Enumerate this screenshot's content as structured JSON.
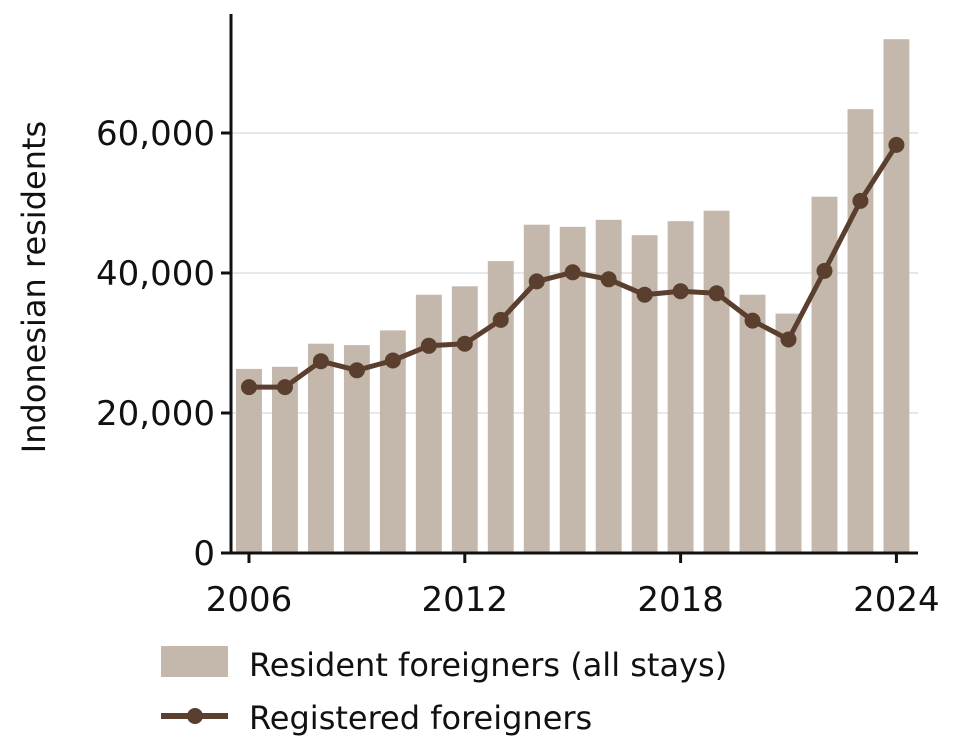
{
  "chart_data": {
    "type": "bar",
    "x": [
      2006,
      2007,
      2008,
      2009,
      2010,
      2011,
      2012,
      2013,
      2014,
      2015,
      2016,
      2017,
      2018,
      2019,
      2020,
      2021,
      2022,
      2023,
      2024
    ],
    "xticks": [
      "2006",
      "2012",
      "2018",
      "2024"
    ],
    "xlim": [
      2005.5,
      2024.6
    ],
    "ylabel": "Indonesian residents",
    "ylim": [
      0,
      77000
    ],
    "yticks": [
      "0",
      "20,000",
      "40,000",
      "60,000"
    ],
    "grid": "horizontal",
    "legend_position": "bottom",
    "series": [
      {
        "name": "Resident foreigners (all stays)",
        "type": "bar",
        "color": "#c4b8ad",
        "values": [
          26300,
          26600,
          29900,
          29700,
          31800,
          36900,
          38100,
          41700,
          46900,
          46600,
          47600,
          45400,
          47400,
          48900,
          36900,
          34200,
          50900,
          63400,
          73400
        ]
      },
      {
        "name": "Registered foreigners",
        "type": "line",
        "color": "#5a3f2e",
        "values": [
          23700,
          23700,
          27400,
          26100,
          27500,
          29600,
          29900,
          33300,
          38800,
          40100,
          39100,
          36900,
          37400,
          37100,
          33200,
          30500,
          40300,
          50300,
          58300
        ]
      }
    ]
  }
}
